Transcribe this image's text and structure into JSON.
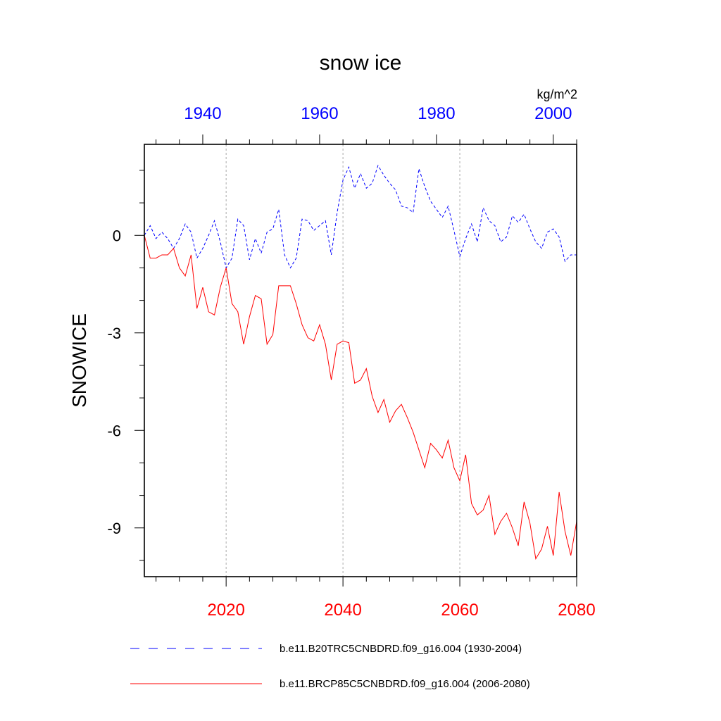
{
  "chart_data": {
    "type": "line",
    "title": "snow ice",
    "units": "kg/m^2",
    "ylabel": "SNOWICE",
    "ylim": [
      -10.5,
      2.8
    ],
    "yticks": [
      0,
      -3,
      -6,
      -9
    ],
    "ytick_labels": [
      "0",
      "-3",
      "-6",
      "-9"
    ],
    "bottom_axis": {
      "range": [
        2006,
        2080
      ],
      "ticks": [
        2020,
        2040,
        2060,
        2080
      ],
      "tick_labels": [
        "2020",
        "2040",
        "2060",
        "2080"
      ],
      "color": "#ff0000"
    },
    "top_axis": {
      "range": [
        1930,
        2004
      ],
      "ticks": [
        1940,
        1960,
        1980,
        2000
      ],
      "tick_labels": [
        "1940",
        "1960",
        "1980",
        "2000"
      ],
      "color": "#0000ff"
    },
    "grid_x": [
      2020,
      2040,
      2060
    ],
    "series": [
      {
        "name": "b.e11.B20TRC5CNBDRD.f09_g16.004 (1930-2004)",
        "color": "#0000ff",
        "style": "dashed",
        "axis": "top",
        "x_start": 1930,
        "values": [
          0.0,
          0.3,
          -0.1,
          0.1,
          -0.1,
          -0.4,
          -0.1,
          0.35,
          0.1,
          -0.7,
          -0.4,
          0.0,
          0.45,
          -0.2,
          -1.0,
          -0.7,
          0.5,
          0.3,
          -0.75,
          -0.1,
          -0.55,
          0.1,
          0.2,
          0.8,
          -0.6,
          -1.0,
          -0.7,
          0.5,
          0.45,
          0.15,
          0.3,
          0.45,
          -0.6,
          0.7,
          1.7,
          2.1,
          1.45,
          1.9,
          1.45,
          1.6,
          2.15,
          1.85,
          1.6,
          1.4,
          0.9,
          0.85,
          0.7,
          2.05,
          1.5,
          1.05,
          0.8,
          0.55,
          0.9,
          0.15,
          -0.65,
          -0.1,
          0.35,
          -0.2,
          0.85,
          0.45,
          0.3,
          -0.2,
          -0.05,
          0.6,
          0.4,
          0.65,
          0.2,
          -0.2,
          -0.4,
          0.1,
          0.2,
          -0.05,
          -0.8,
          -0.6,
          -0.6
        ]
      },
      {
        "name": "b.e11.BRCP85C5CNBDRD.f09_g16.004 (2006-2080)",
        "color": "#ff0000",
        "style": "solid",
        "axis": "bottom",
        "x_start": 2006,
        "values": [
          0.0,
          -0.7,
          -0.7,
          -0.6,
          -0.6,
          -0.4,
          -1.0,
          -1.25,
          -0.6,
          -2.25,
          -1.6,
          -2.35,
          -2.45,
          -1.6,
          -1.0,
          -2.1,
          -2.35,
          -3.35,
          -2.5,
          -1.85,
          -1.95,
          -3.35,
          -3.05,
          -1.55,
          -1.55,
          -1.55,
          -2.1,
          -2.75,
          -3.15,
          -3.25,
          -2.75,
          -3.35,
          -4.45,
          -3.35,
          -3.25,
          -3.3,
          -4.55,
          -4.45,
          -4.1,
          -4.95,
          -5.45,
          -5.05,
          -5.75,
          -5.4,
          -5.2,
          -5.6,
          -6.05,
          -6.6,
          -7.15,
          -6.4,
          -6.6,
          -6.85,
          -6.3,
          -7.15,
          -7.55,
          -6.75,
          -8.25,
          -8.6,
          -8.45,
          -8.0,
          -9.2,
          -8.8,
          -8.55,
          -9.0,
          -9.55,
          -8.2,
          -8.85,
          -9.95,
          -9.65,
          -8.95,
          -9.85,
          -7.9,
          -9.1,
          -9.85,
          -8.8
        ]
      }
    ],
    "legend": [
      {
        "label": "b.e11.B20TRC5CNBDRD.f09_g16.004 (1930-2004)",
        "color": "#0000ff",
        "style": "dashed"
      },
      {
        "label": "b.e11.BRCP85C5CNBDRD.f09_g16.004 (2006-2080)",
        "color": "#ff0000",
        "style": "solid"
      }
    ]
  }
}
